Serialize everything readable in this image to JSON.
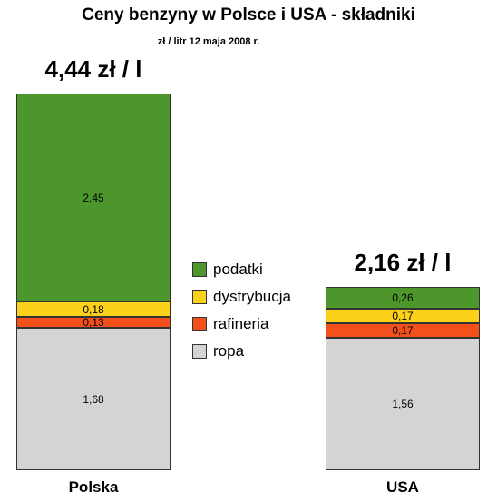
{
  "chart_data": {
    "type": "bar",
    "stacked": true,
    "title": "Ceny benzyny w Polsce i USA - składniki",
    "subtitle": "zł / litr 12 maja 2008 r.",
    "categories": [
      "Polska",
      "USA"
    ],
    "totals": [
      "4,44 zł / l",
      "2,16 zł / l"
    ],
    "series": [
      {
        "name": "ropa",
        "values": [
          1.68,
          1.56
        ],
        "labels": [
          "1,68",
          "1,56"
        ],
        "color": "#d4d4d4"
      },
      {
        "name": "rafineria",
        "values": [
          0.13,
          0.17
        ],
        "labels": [
          "0,13",
          "0,17"
        ],
        "color": "#f4501c"
      },
      {
        "name": "dystrybucja",
        "values": [
          0.18,
          0.17
        ],
        "labels": [
          "0,18",
          "0,17"
        ],
        "color": "#fcd11a"
      },
      {
        "name": "podatki",
        "values": [
          2.45,
          0.26
        ],
        "labels": [
          "2,45",
          "0,26"
        ],
        "color": "#4c962b"
      }
    ],
    "legend_order": [
      "podatki",
      "dystrybucja",
      "rafineria",
      "ropa"
    ],
    "legend_position": "center",
    "grid": false
  }
}
